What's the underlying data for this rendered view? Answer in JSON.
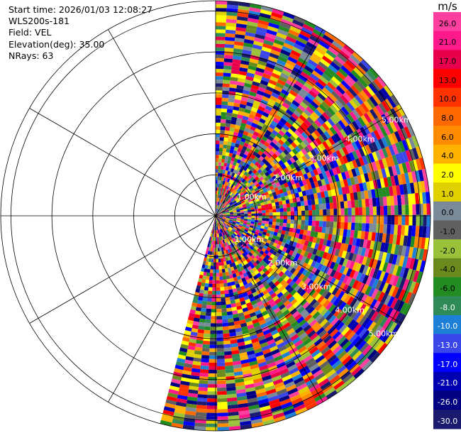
{
  "info": {
    "start_time": "Start time: 2026/01/03 12:08:27",
    "instrument": "WLS200s-181",
    "field": "Field: VEL",
    "elevation": "Elevation(deg): 35.00",
    "nrays": "NRays: 63"
  },
  "chart_data": {
    "type": "heatmap",
    "projection": "polar PPI (plan position indicator)",
    "field": "VEL",
    "unit": "m/s",
    "elevation_deg": 35.0,
    "n_rays": 63,
    "azimuth_range_deg": [
      0,
      195
    ],
    "range_rings_km": [
      1.0,
      2.0,
      3.0,
      4.0,
      5.0
    ],
    "ring_labels": [
      "1.00km",
      "2.00km",
      "3.00km",
      "4.00km",
      "5.00km"
    ],
    "max_range_km": 5.25,
    "spokes_every_deg": 30,
    "colorbar": {
      "unit_label": "m/s",
      "ticks": [
        "26.0",
        "21.0",
        "17.0",
        "13.0",
        "10.0",
        "8.0",
        "6.0",
        "4.0",
        "2.0",
        "1.0",
        "0.0",
        "-1.0",
        "-2.0",
        "-4.0",
        "-6.0",
        "-8.0",
        "-10.0",
        "-13.0",
        "-17.0",
        "-21.0",
        "-26.0",
        "-30.0"
      ],
      "colors": [
        "#ff3fa0",
        "#ff1a8c",
        "#e8004c",
        "#ff0000",
        "#ff3300",
        "#ff6a00",
        "#ff8c00",
        "#ffb300",
        "#ffff00",
        "#e0d000",
        "#7a8a99",
        "#606060",
        "#99c23a",
        "#6b8a1e",
        "#228b22",
        "#2e8b57",
        "#1e7fd6",
        "#3a46e8",
        "#0000ff",
        "#0000b0",
        "#000080",
        "#1a1a6e"
      ]
    }
  }
}
